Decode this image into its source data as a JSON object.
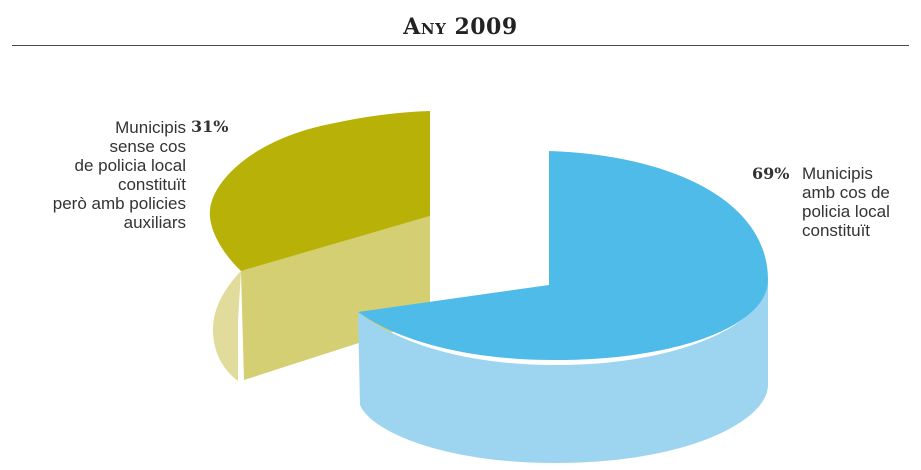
{
  "chart_data": {
    "type": "pie",
    "title": "Any 2009",
    "slices": [
      {
        "label": "Municipis amb cos de policia local constituït",
        "value": 69,
        "value_label": "69%",
        "color": "#4fbbe8",
        "side_color": "#9dd5f1"
      },
      {
        "label": "Municipis sense cos de policia local constituït però amb policies auxiliars",
        "value": 31,
        "value_label": "31%",
        "color": "#b8b208",
        "side_color": "#d3cf72"
      }
    ]
  },
  "labels": {
    "right": [
      "Municipis",
      "amb cos de",
      "policia local",
      "constituït"
    ],
    "left": [
      "Municipis",
      "sense cos",
      "de policia local",
      "constituït",
      "però amb policies",
      "auxiliars"
    ]
  }
}
